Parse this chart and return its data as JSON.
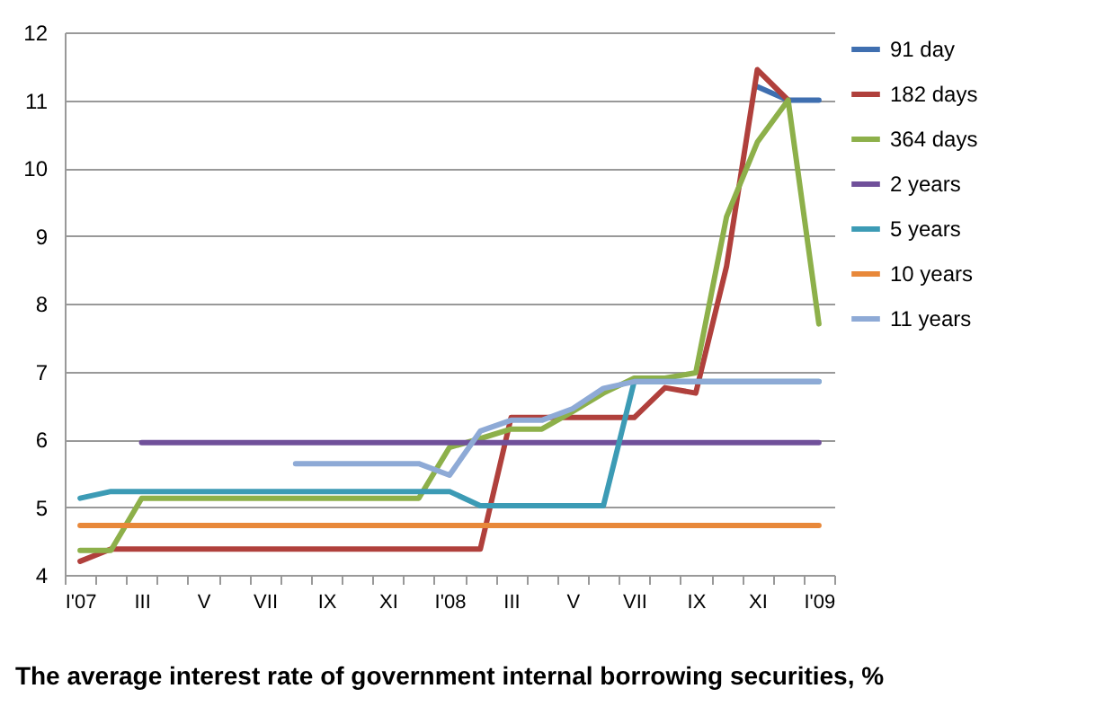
{
  "chart_data": {
    "type": "line",
    "title": "The average interest rate of government internal borrowing securities, %",
    "categories": [
      "I'07",
      null,
      "III",
      null,
      "V",
      null,
      "VII",
      null,
      "IX",
      null,
      "XI",
      null,
      "I'08",
      null,
      "III",
      null,
      "V",
      null,
      "VII",
      null,
      "IX",
      null,
      "XI",
      null,
      "I'09"
    ],
    "series": [
      {
        "name": "91 day",
        "color": "#3f6fb0",
        "values": [
          null,
          null,
          null,
          null,
          null,
          null,
          null,
          null,
          null,
          null,
          null,
          null,
          null,
          null,
          null,
          null,
          null,
          null,
          null,
          null,
          null,
          null,
          11.2,
          11,
          11
        ]
      },
      {
        "name": "182 days",
        "color": "#b0403c",
        "values": [
          4.2,
          4.38,
          4.38,
          4.38,
          4.38,
          4.38,
          4.38,
          4.38,
          4.38,
          4.38,
          4.38,
          4.38,
          4.38,
          4.38,
          6.32,
          6.32,
          6.32,
          6.32,
          6.32,
          6.76,
          6.68,
          8.55,
          11.45,
          11,
          null
        ]
      },
      {
        "name": "364 days",
        "color": "#8db04a",
        "values": [
          4.36,
          4.36,
          5.13,
          5.13,
          5.13,
          5.13,
          5.13,
          5.13,
          5.13,
          5.13,
          5.13,
          5.13,
          5.88,
          6.01,
          6.15,
          6.15,
          6.41,
          6.68,
          6.9,
          6.9,
          6.98,
          9.28,
          10.38,
          11,
          7.7
        ]
      },
      {
        "name": "2 years",
        "color": "#70509a",
        "values": [
          null,
          null,
          5.95,
          5.95,
          5.95,
          5.95,
          5.95,
          5.95,
          5.95,
          5.95,
          5.95,
          5.95,
          5.95,
          5.95,
          5.95,
          5.95,
          5.95,
          5.95,
          5.95,
          5.95,
          5.95,
          5.95,
          5.95,
          5.95,
          5.95
        ]
      },
      {
        "name": "5 years",
        "color": "#3c9bb5",
        "values": [
          5.13,
          5.23,
          5.23,
          5.23,
          5.23,
          5.23,
          5.23,
          5.23,
          5.23,
          5.23,
          5.23,
          5.23,
          5.23,
          5.02,
          5.02,
          5.02,
          5.02,
          5.02,
          6.85,
          6.85,
          6.85,
          6.85,
          6.85,
          6.85,
          6.85
        ]
      },
      {
        "name": "10 years",
        "color": "#e8883a",
        "values": [
          4.73,
          4.73,
          4.73,
          4.73,
          4.73,
          4.73,
          4.73,
          4.73,
          4.73,
          4.73,
          4.73,
          4.73,
          4.73,
          4.73,
          4.73,
          4.73,
          4.73,
          4.73,
          4.73,
          4.73,
          4.73,
          4.73,
          4.73,
          4.73,
          4.73
        ]
      },
      {
        "name": "11 years",
        "color": "#8eaad6",
        "values": [
          null,
          null,
          null,
          null,
          null,
          null,
          null,
          5.64,
          5.64,
          5.64,
          5.64,
          5.64,
          5.47,
          6.12,
          6.28,
          6.28,
          6.45,
          6.75,
          6.85,
          6.85,
          6.85,
          6.85,
          6.85,
          6.85,
          6.85
        ]
      }
    ],
    "ylim": [
      4,
      12
    ],
    "yticks": [
      4,
      5,
      6,
      7,
      8,
      9,
      10,
      11,
      12
    ],
    "grid": "y",
    "legend": "right",
    "marker": "none",
    "line_style": "solid"
  }
}
